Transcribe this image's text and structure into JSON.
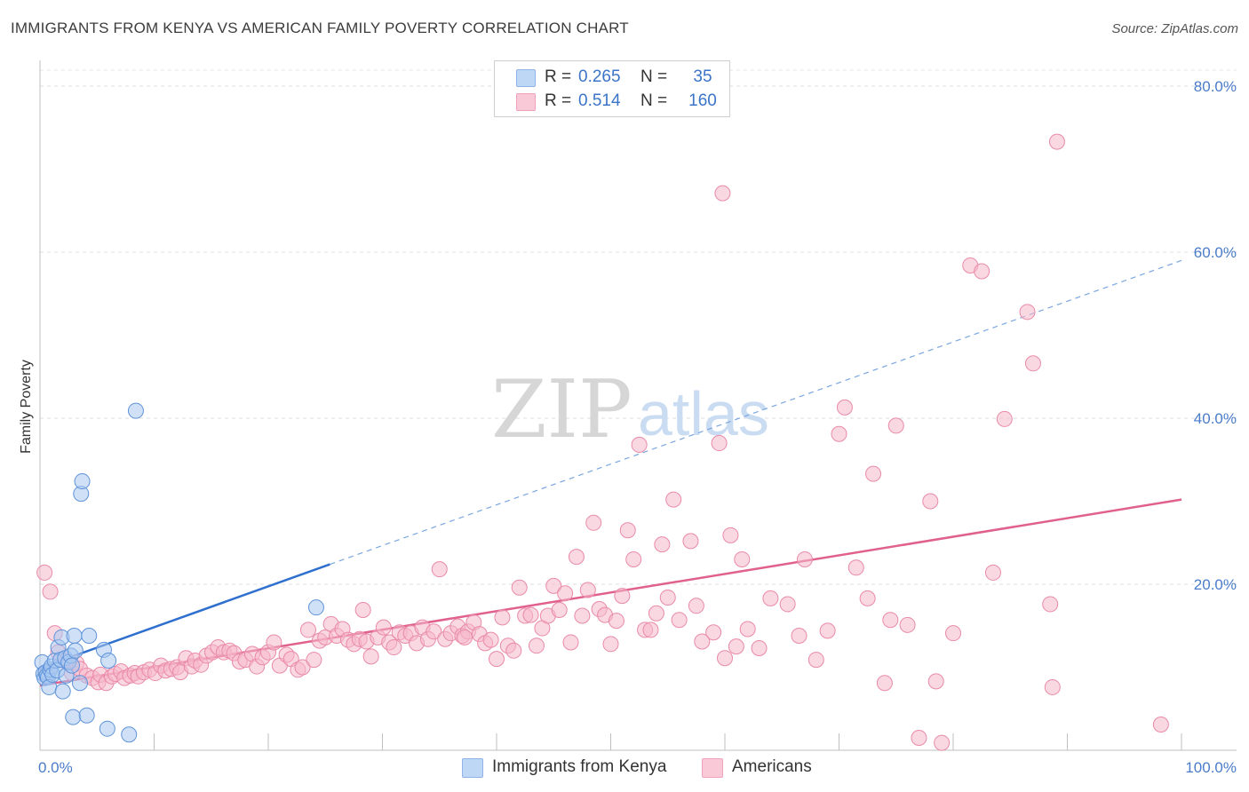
{
  "title": "IMMIGRANTS FROM KENYA VS AMERICAN FAMILY POVERTY CORRELATION CHART",
  "source": "Source: ZipAtlas.com",
  "watermark": {
    "zip": "ZIP",
    "atlas": "atlas"
  },
  "legend_top": [
    {
      "r_label": "R =",
      "r_value": "0.265",
      "n_label": "N =",
      "n_value": "35",
      "color": "#a9c8f0"
    },
    {
      "r_label": "R =",
      "r_value": "0.514",
      "n_label": "N =",
      "n_value": "160",
      "color": "#f6b8cb"
    }
  ],
  "legend_bottom": [
    {
      "label": "Immigrants from Kenya",
      "color": "#a9c8f0"
    },
    {
      "label": "Americans",
      "color": "#f6b8cb"
    }
  ],
  "colors": {
    "blue_line": "#2f6fce",
    "pink_line": "#e0608e",
    "blue_fill": "#a9c8f0",
    "pink_fill": "#f6b8cb",
    "tick_text": "#4a7cc9"
  },
  "chart_data": {
    "type": "scatter",
    "title": "IMMIGRANTS FROM KENYA VS AMERICAN FAMILY POVERTY CORRELATION CHART",
    "xlabel": "",
    "ylabel": "Family Poverty",
    "xlim": [
      0,
      100
    ],
    "ylim": [
      0,
      80
    ],
    "x_tick_labels": [
      "0.0%",
      "100.0%"
    ],
    "y_ticks": [
      20,
      40,
      60,
      80
    ],
    "y_tick_labels": [
      "20.0%",
      "40.0%",
      "60.0%",
      "80.0%"
    ],
    "grid": true,
    "legend_placement": "top-center",
    "series": [
      {
        "name": "Immigrants from Kenya",
        "color": "#a9c8f0",
        "points": [
          [
            0.2,
            10.6
          ],
          [
            0.3,
            9.2
          ],
          [
            0.4,
            8.7
          ],
          [
            0.5,
            9.4
          ],
          [
            0.6,
            9.0
          ],
          [
            0.7,
            8.8
          ],
          [
            0.8,
            7.6
          ],
          [
            0.9,
            9.7
          ],
          [
            1.0,
            10.1
          ],
          [
            1.1,
            9.1
          ],
          [
            1.3,
            10.8
          ],
          [
            1.5,
            9.6
          ],
          [
            1.6,
            12.4
          ],
          [
            1.8,
            10.9
          ],
          [
            1.9,
            13.6
          ],
          [
            2.0,
            7.1
          ],
          [
            2.2,
            11.1
          ],
          [
            2.3,
            9.0
          ],
          [
            2.5,
            10.6
          ],
          [
            2.7,
            11.4
          ],
          [
            2.8,
            10.2
          ],
          [
            2.9,
            4.0
          ],
          [
            3.0,
            13.8
          ],
          [
            3.1,
            12.0
          ],
          [
            3.5,
            8.1
          ],
          [
            3.6,
            30.9
          ],
          [
            3.7,
            32.4
          ],
          [
            4.1,
            4.2
          ],
          [
            4.3,
            13.8
          ],
          [
            5.6,
            12.1
          ],
          [
            6.0,
            10.8
          ],
          [
            5.9,
            2.6
          ],
          [
            7.8,
            1.9
          ],
          [
            8.4,
            40.9
          ],
          [
            24.2,
            17.2
          ]
        ],
        "trend": {
          "x": [
            0,
            25.4
          ],
          "y": [
            9.9,
            22.4
          ],
          "dashed_extension_to": [
            100,
            59.0
          ]
        }
      },
      {
        "name": "Americans",
        "color": "#f6b8cb",
        "points": [
          [
            0.4,
            21.4
          ],
          [
            0.9,
            19.1
          ],
          [
            1.3,
            14.1
          ],
          [
            1.6,
            11.8
          ],
          [
            2.3,
            10.7
          ],
          [
            2.8,
            9.3
          ],
          [
            3.2,
            10.5
          ],
          [
            3.5,
            9.8
          ],
          [
            4.1,
            9.0
          ],
          [
            4.6,
            8.7
          ],
          [
            5.1,
            8.2
          ],
          [
            5.3,
            9.1
          ],
          [
            5.8,
            8.1
          ],
          [
            6.3,
            8.9
          ],
          [
            6.6,
            9.2
          ],
          [
            7.1,
            9.5
          ],
          [
            7.4,
            8.7
          ],
          [
            7.9,
            9.0
          ],
          [
            8.3,
            9.3
          ],
          [
            8.6,
            8.9
          ],
          [
            9.1,
            9.4
          ],
          [
            9.6,
            9.7
          ],
          [
            10.1,
            9.3
          ],
          [
            10.6,
            10.2
          ],
          [
            11.0,
            9.6
          ],
          [
            11.5,
            9.8
          ],
          [
            12.0,
            10.0
          ],
          [
            12.3,
            9.4
          ],
          [
            12.8,
            11.1
          ],
          [
            13.3,
            10.1
          ],
          [
            13.6,
            10.8
          ],
          [
            14.1,
            10.3
          ],
          [
            14.6,
            11.4
          ],
          [
            15.1,
            11.8
          ],
          [
            15.6,
            12.4
          ],
          [
            16.1,
            11.8
          ],
          [
            16.6,
            12.0
          ],
          [
            17.0,
            11.7
          ],
          [
            17.5,
            10.7
          ],
          [
            18.0,
            10.9
          ],
          [
            18.6,
            11.6
          ],
          [
            19.0,
            10.1
          ],
          [
            19.5,
            11.2
          ],
          [
            20.0,
            11.8
          ],
          [
            20.5,
            13.0
          ],
          [
            21.0,
            10.2
          ],
          [
            21.6,
            11.5
          ],
          [
            22.0,
            11.0
          ],
          [
            22.6,
            9.7
          ],
          [
            23.0,
            10.0
          ],
          [
            23.5,
            14.5
          ],
          [
            24.0,
            10.9
          ],
          [
            24.5,
            13.2
          ],
          [
            25.0,
            13.6
          ],
          [
            25.5,
            15.2
          ],
          [
            26.0,
            13.8
          ],
          [
            26.5,
            14.6
          ],
          [
            27.0,
            13.3
          ],
          [
            27.5,
            12.8
          ],
          [
            28.0,
            13.4
          ],
          [
            28.3,
            16.9
          ],
          [
            28.6,
            13.1
          ],
          [
            29.0,
            11.3
          ],
          [
            29.6,
            13.6
          ],
          [
            30.1,
            14.8
          ],
          [
            30.6,
            13.0
          ],
          [
            31.0,
            12.4
          ],
          [
            31.5,
            14.2
          ],
          [
            32.0,
            13.8
          ],
          [
            32.5,
            14.1
          ],
          [
            33.0,
            12.9
          ],
          [
            33.5,
            14.8
          ],
          [
            34.0,
            13.4
          ],
          [
            34.5,
            14.3
          ],
          [
            35.0,
            21.8
          ],
          [
            35.5,
            13.4
          ],
          [
            36.0,
            14.1
          ],
          [
            36.6,
            14.9
          ],
          [
            37.0,
            13.8
          ],
          [
            37.5,
            14.3
          ],
          [
            38.0,
            15.4
          ],
          [
            38.5,
            14.0
          ],
          [
            39.0,
            12.9
          ],
          [
            39.5,
            13.3
          ],
          [
            40.0,
            11.0
          ],
          [
            40.5,
            16.0
          ],
          [
            41.0,
            12.6
          ],
          [
            41.5,
            12.0
          ],
          [
            42.0,
            19.6
          ],
          [
            42.5,
            16.2
          ],
          [
            43.0,
            16.3
          ],
          [
            43.5,
            12.6
          ],
          [
            44.0,
            14.7
          ],
          [
            44.5,
            16.2
          ],
          [
            45.0,
            19.8
          ],
          [
            45.5,
            16.9
          ],
          [
            46.0,
            18.9
          ],
          [
            46.5,
            13.0
          ],
          [
            47.0,
            23.3
          ],
          [
            47.5,
            16.2
          ],
          [
            48.0,
            19.3
          ],
          [
            48.5,
            27.4
          ],
          [
            49.0,
            17.0
          ],
          [
            49.5,
            16.3
          ],
          [
            50.0,
            12.8
          ],
          [
            50.5,
            15.6
          ],
          [
            51.0,
            18.6
          ],
          [
            51.5,
            26.5
          ],
          [
            52.0,
            23.0
          ],
          [
            52.5,
            36.8
          ],
          [
            53.0,
            14.5
          ],
          [
            53.5,
            14.5
          ],
          [
            54.0,
            16.5
          ],
          [
            54.5,
            24.8
          ],
          [
            55.0,
            18.4
          ],
          [
            55.5,
            30.2
          ],
          [
            56.0,
            15.7
          ],
          [
            57.0,
            25.2
          ],
          [
            57.5,
            17.4
          ],
          [
            58.0,
            13.1
          ],
          [
            59.0,
            14.2
          ],
          [
            60.0,
            11.1
          ],
          [
            60.5,
            25.9
          ],
          [
            61.0,
            12.5
          ],
          [
            61.5,
            23.0
          ],
          [
            62.0,
            14.6
          ],
          [
            63.0,
            12.3
          ],
          [
            64.0,
            18.3
          ],
          [
            65.5,
            17.6
          ],
          [
            66.5,
            13.8
          ],
          [
            67.0,
            23.0
          ],
          [
            68.0,
            10.9
          ],
          [
            69.0,
            14.4
          ],
          [
            70.0,
            38.1
          ],
          [
            70.5,
            41.3
          ],
          [
            71.5,
            22.0
          ],
          [
            72.5,
            18.3
          ],
          [
            73.0,
            33.3
          ],
          [
            74.0,
            8.1
          ],
          [
            74.5,
            15.7
          ],
          [
            75.0,
            39.1
          ],
          [
            76.0,
            15.1
          ],
          [
            77.0,
            1.5
          ],
          [
            78.0,
            30.0
          ],
          [
            78.5,
            8.3
          ],
          [
            79.0,
            0.9
          ],
          [
            80.0,
            14.1
          ],
          [
            81.5,
            58.4
          ],
          [
            82.5,
            57.7
          ],
          [
            83.5,
            21.4
          ],
          [
            84.5,
            39.9
          ],
          [
            86.5,
            52.8
          ],
          [
            87.0,
            46.6
          ],
          [
            88.5,
            17.6
          ],
          [
            88.7,
            7.6
          ],
          [
            89.1,
            73.3
          ],
          [
            98.2,
            3.1
          ],
          [
            59.8,
            67.1
          ],
          [
            59.5,
            37.0
          ],
          [
            37.2,
            13.6
          ]
        ],
        "trend": {
          "x": [
            0,
            100
          ],
          "y": [
            7.8,
            30.2
          ]
        }
      }
    ]
  }
}
